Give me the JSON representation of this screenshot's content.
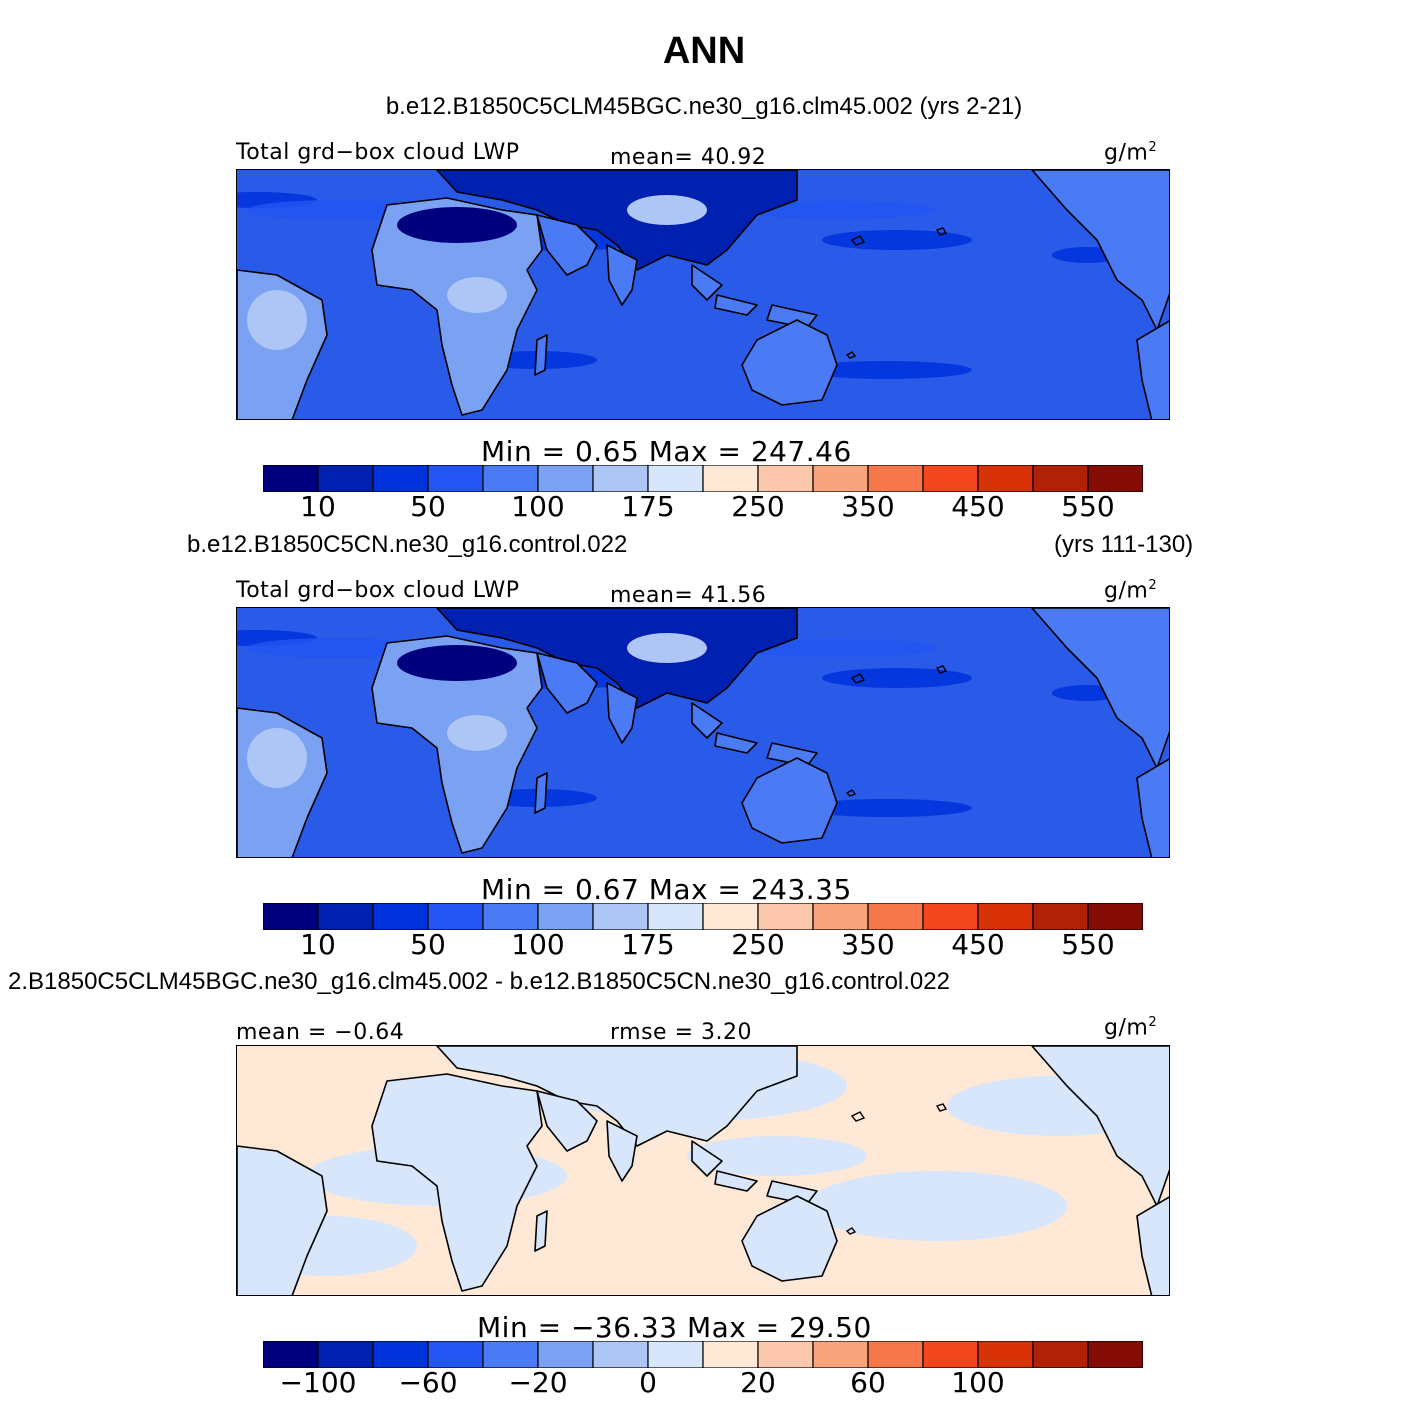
{
  "title": "ANN",
  "panels": [
    {
      "case_title": "b.e12.B1850C5CLM45BGC.ne30_g16.clm45.002 (yrs 2-21)",
      "case_title_right": "",
      "var_label": "Total grd−box cloud LWP",
      "stat_label": "mean=  40.92",
      "stat2_label": "",
      "units": "g/m",
      "units_sup": "2",
      "minmax": "Min =    0.65  Max = 247.46",
      "kind": "abs",
      "colorbar": {
        "colors": [
          "#00007f",
          "#0020b0",
          "#0033dc",
          "#2255f2",
          "#4a7af4",
          "#7ba1f3",
          "#adc6f6",
          "#d7e6fb",
          "#ffe8d5",
          "#fcc7ad",
          "#f9a47d",
          "#f6774a",
          "#f3461d",
          "#d93108",
          "#b02106",
          "#850b05"
        ],
        "ticks": [
          "10",
          "50",
          "100",
          "175",
          "250",
          "350",
          "450",
          "550"
        ]
      }
    },
    {
      "case_title": "b.e12.B1850C5CN.ne30_g16.control.022",
      "case_title_right": "(yrs 111-130)",
      "var_label": "Total grd−box cloud LWP",
      "stat_label": "mean=  41.56",
      "stat2_label": "",
      "units": "g/m",
      "units_sup": "2",
      "minmax": "Min =    0.67  Max = 243.35",
      "kind": "abs",
      "colorbar": {
        "colors": [
          "#00007f",
          "#0020b0",
          "#0033dc",
          "#2255f2",
          "#4a7af4",
          "#7ba1f3",
          "#adc6f6",
          "#d7e6fb",
          "#ffe8d5",
          "#fcc7ad",
          "#f9a47d",
          "#f6774a",
          "#f3461d",
          "#d93108",
          "#b02106",
          "#850b05"
        ],
        "ticks": [
          "10",
          "50",
          "100",
          "175",
          "250",
          "350",
          "450",
          "550"
        ]
      }
    },
    {
      "case_title": "2.B1850C5CLM45BGC.ne30_g16.clm45.002 - b.e12.B1850C5CN.ne30_g16.control.022",
      "case_title_right": "",
      "var_label": "",
      "stat_label": "mean =  −0.64",
      "stat2_label": "rmse =    3.20",
      "units": "g/m",
      "units_sup": "2",
      "minmax": "Min = −36.33  Max =   29.50",
      "kind": "diff",
      "colorbar": {
        "colors": [
          "#00007f",
          "#0020b0",
          "#0033dc",
          "#2255f2",
          "#4a7af4",
          "#7ba1f3",
          "#adc6f6",
          "#d7e6fb",
          "#ffe8d5",
          "#fcc7ad",
          "#f9a47d",
          "#f6774a",
          "#f3461d",
          "#d93108",
          "#b02106",
          "#850b05"
        ],
        "ticks": [
          "−100",
          "−60",
          "−20",
          "0",
          "20",
          "60",
          "100"
        ]
      }
    }
  ],
  "colors": {
    "ocean_abs": "#2a5ae8",
    "land_light": "#7ba1f3",
    "land_dark": "#0020b0",
    "diff_pos": "#ffe8d5",
    "diff_neg": "#d7e6fb"
  }
}
